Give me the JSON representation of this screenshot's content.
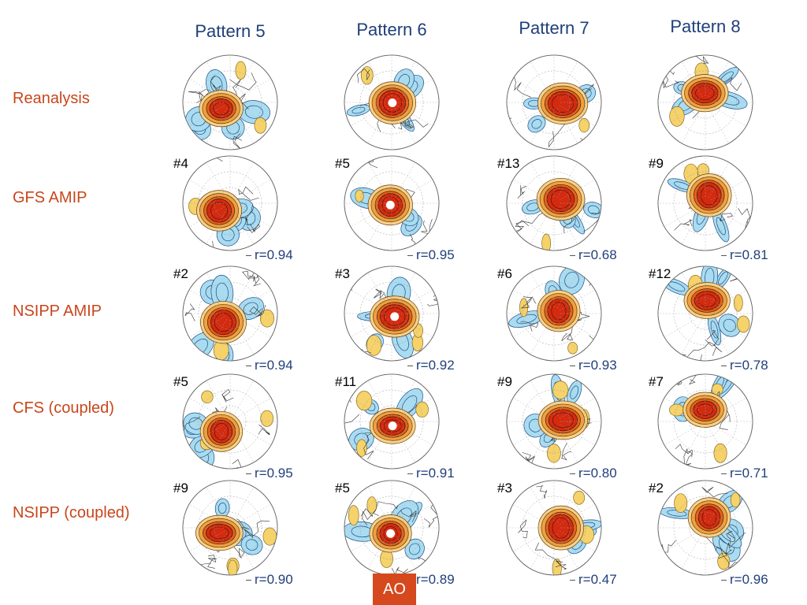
{
  "columns": [
    "Pattern 5",
    "Pattern 6",
    "Pattern 7",
    "Pattern 8"
  ],
  "rows": [
    {
      "label": "Reanalysis",
      "cells": [
        {
          "rank": "",
          "r": ""
        },
        {
          "rank": "",
          "r": ""
        },
        {
          "rank": "",
          "r": ""
        },
        {
          "rank": "",
          "r": ""
        }
      ]
    },
    {
      "label": "GFS AMIP",
      "cells": [
        {
          "rank": "#4",
          "r": "r=0.94"
        },
        {
          "rank": "#5",
          "r": "r=0.95"
        },
        {
          "rank": "#13",
          "r": "r=0.68"
        },
        {
          "rank": "#9",
          "r": "r=0.81"
        }
      ]
    },
    {
      "label": "NSIPP AMIP",
      "cells": [
        {
          "rank": "#2",
          "r": "r=0.94"
        },
        {
          "rank": "#3",
          "r": "r=0.92"
        },
        {
          "rank": "#6",
          "r": "r=0.93"
        },
        {
          "rank": "#12",
          "r": "r=0.78"
        }
      ]
    },
    {
      "label": "CFS (coupled)",
      "cells": [
        {
          "rank": "#5",
          "r": "r=0.95"
        },
        {
          "rank": "#11",
          "r": "r=0.91"
        },
        {
          "rank": "#9",
          "r": "r=0.80"
        },
        {
          "rank": "#7",
          "r": "r=0.71"
        }
      ]
    },
    {
      "label": "NSIPP (coupled)",
      "cells": [
        {
          "rank": "#9",
          "r": "r=0.90"
        },
        {
          "rank": "#5",
          "r": "r=0.89"
        },
        {
          "rank": "#3",
          "r": "r=0.47"
        },
        {
          "rank": "#2",
          "r": "r=0.96"
        }
      ]
    }
  ],
  "ao_badge": "AO",
  "colors": {
    "header": "#1f3f7a",
    "row_label": "#c8461c",
    "positive_anomaly": "#d42a10",
    "negative_anomaly": "#a9dcf0",
    "weak_positive": "#f5d26a",
    "badge": "#d6481e"
  }
}
